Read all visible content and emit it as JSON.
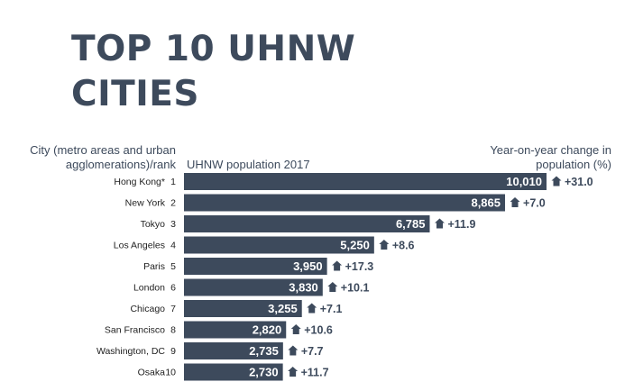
{
  "title_lines": [
    "TOP 10 UHNW",
    "CITIES"
  ],
  "header_city": [
    "City (metro areas and urban",
    "agglomerations)/rank"
  ],
  "header_population": "UHNW population 2017",
  "header_change": [
    "Year-on-year change in",
    "population (%)"
  ],
  "colors": {
    "bar": "#3d4a5c",
    "text": "#3d4a5c",
    "label": "#222222",
    "bar_text": "#ffffff"
  },
  "icons": {
    "change": "house-arrow-icon"
  },
  "chart_data": {
    "type": "bar",
    "orientation": "horizontal",
    "title": "TOP 10 UHNW CITIES",
    "xlabel": "UHNW population 2017",
    "ylabel": "City (metro areas and urban agglomerations)/rank",
    "xlim": [
      0,
      10010
    ],
    "categories": [
      "Hong Kong*",
      "New York",
      "Tokyo",
      "Los Angeles",
      "Paris",
      "London",
      "Chicago",
      "San Francisco",
      "Washington, DC",
      "Osaka"
    ],
    "ranks": [
      "1",
      "2",
      "3",
      "4",
      "5",
      "6",
      "7",
      "8",
      "9",
      "10"
    ],
    "values": [
      10010,
      8865,
      6785,
      5250,
      3950,
      3830,
      3255,
      2820,
      2735,
      2730
    ],
    "value_labels": [
      "10,010",
      "8,865",
      "6,785",
      "5,250",
      "3,950",
      "3,830",
      "3,255",
      "2,820",
      "2,735",
      "2,730"
    ],
    "change_values": [
      31.0,
      7.0,
      11.9,
      8.6,
      17.3,
      10.1,
      7.1,
      10.6,
      7.7,
      11.7
    ],
    "change_labels": [
      "+31.0",
      "+7.0",
      "+11.9",
      "+8.6",
      "+17.3",
      "+10.1",
      "+7.1",
      "+10.6",
      "+7.7",
      "+11.7"
    ],
    "change_series_name": "Year-on-year change in population (%)"
  }
}
